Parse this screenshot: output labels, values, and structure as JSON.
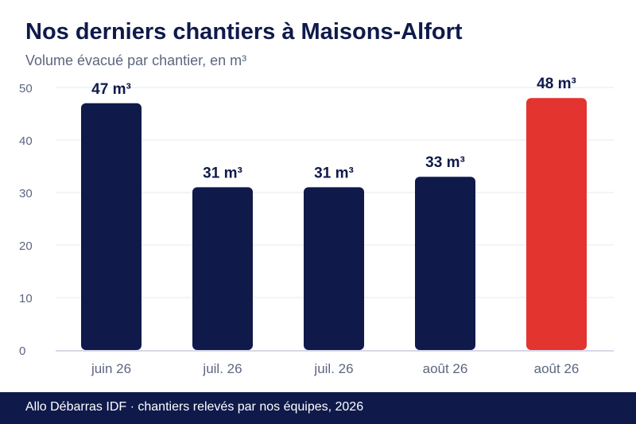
{
  "header": {
    "title": "Nos derniers chantiers à Maisons-Alfort",
    "subtitle": "Volume évacué par chantier, en m³"
  },
  "footer": {
    "text": "Allo Débarras IDF · chantiers relevés par nos équipes, 2026"
  },
  "colors": {
    "bar": "#0f1a4b",
    "highlight": "#e3342f",
    "grid": "#e6e8ef",
    "axis": "#c8cbe0",
    "tick_text": "#5c6680",
    "value_label": "#0f1a4b"
  },
  "chart_data": {
    "type": "bar",
    "title": "Nos derniers chantiers à Maisons-Alfort",
    "subtitle": "Volume évacué par chantier, en m³",
    "categories": [
      "juin 26",
      "juil. 26",
      "juil. 26",
      "août 26",
      "août 26"
    ],
    "values": [
      47,
      31,
      31,
      33,
      48
    ],
    "value_labels": [
      "47 m³",
      "31 m³",
      "31 m³",
      "33 m³",
      "48 m³"
    ],
    "highlight_index": 4,
    "ylim": [
      0,
      50
    ],
    "yticks": [
      0,
      10,
      20,
      30,
      40,
      50
    ],
    "grid": true,
    "xlabel": "",
    "ylabel": ""
  }
}
